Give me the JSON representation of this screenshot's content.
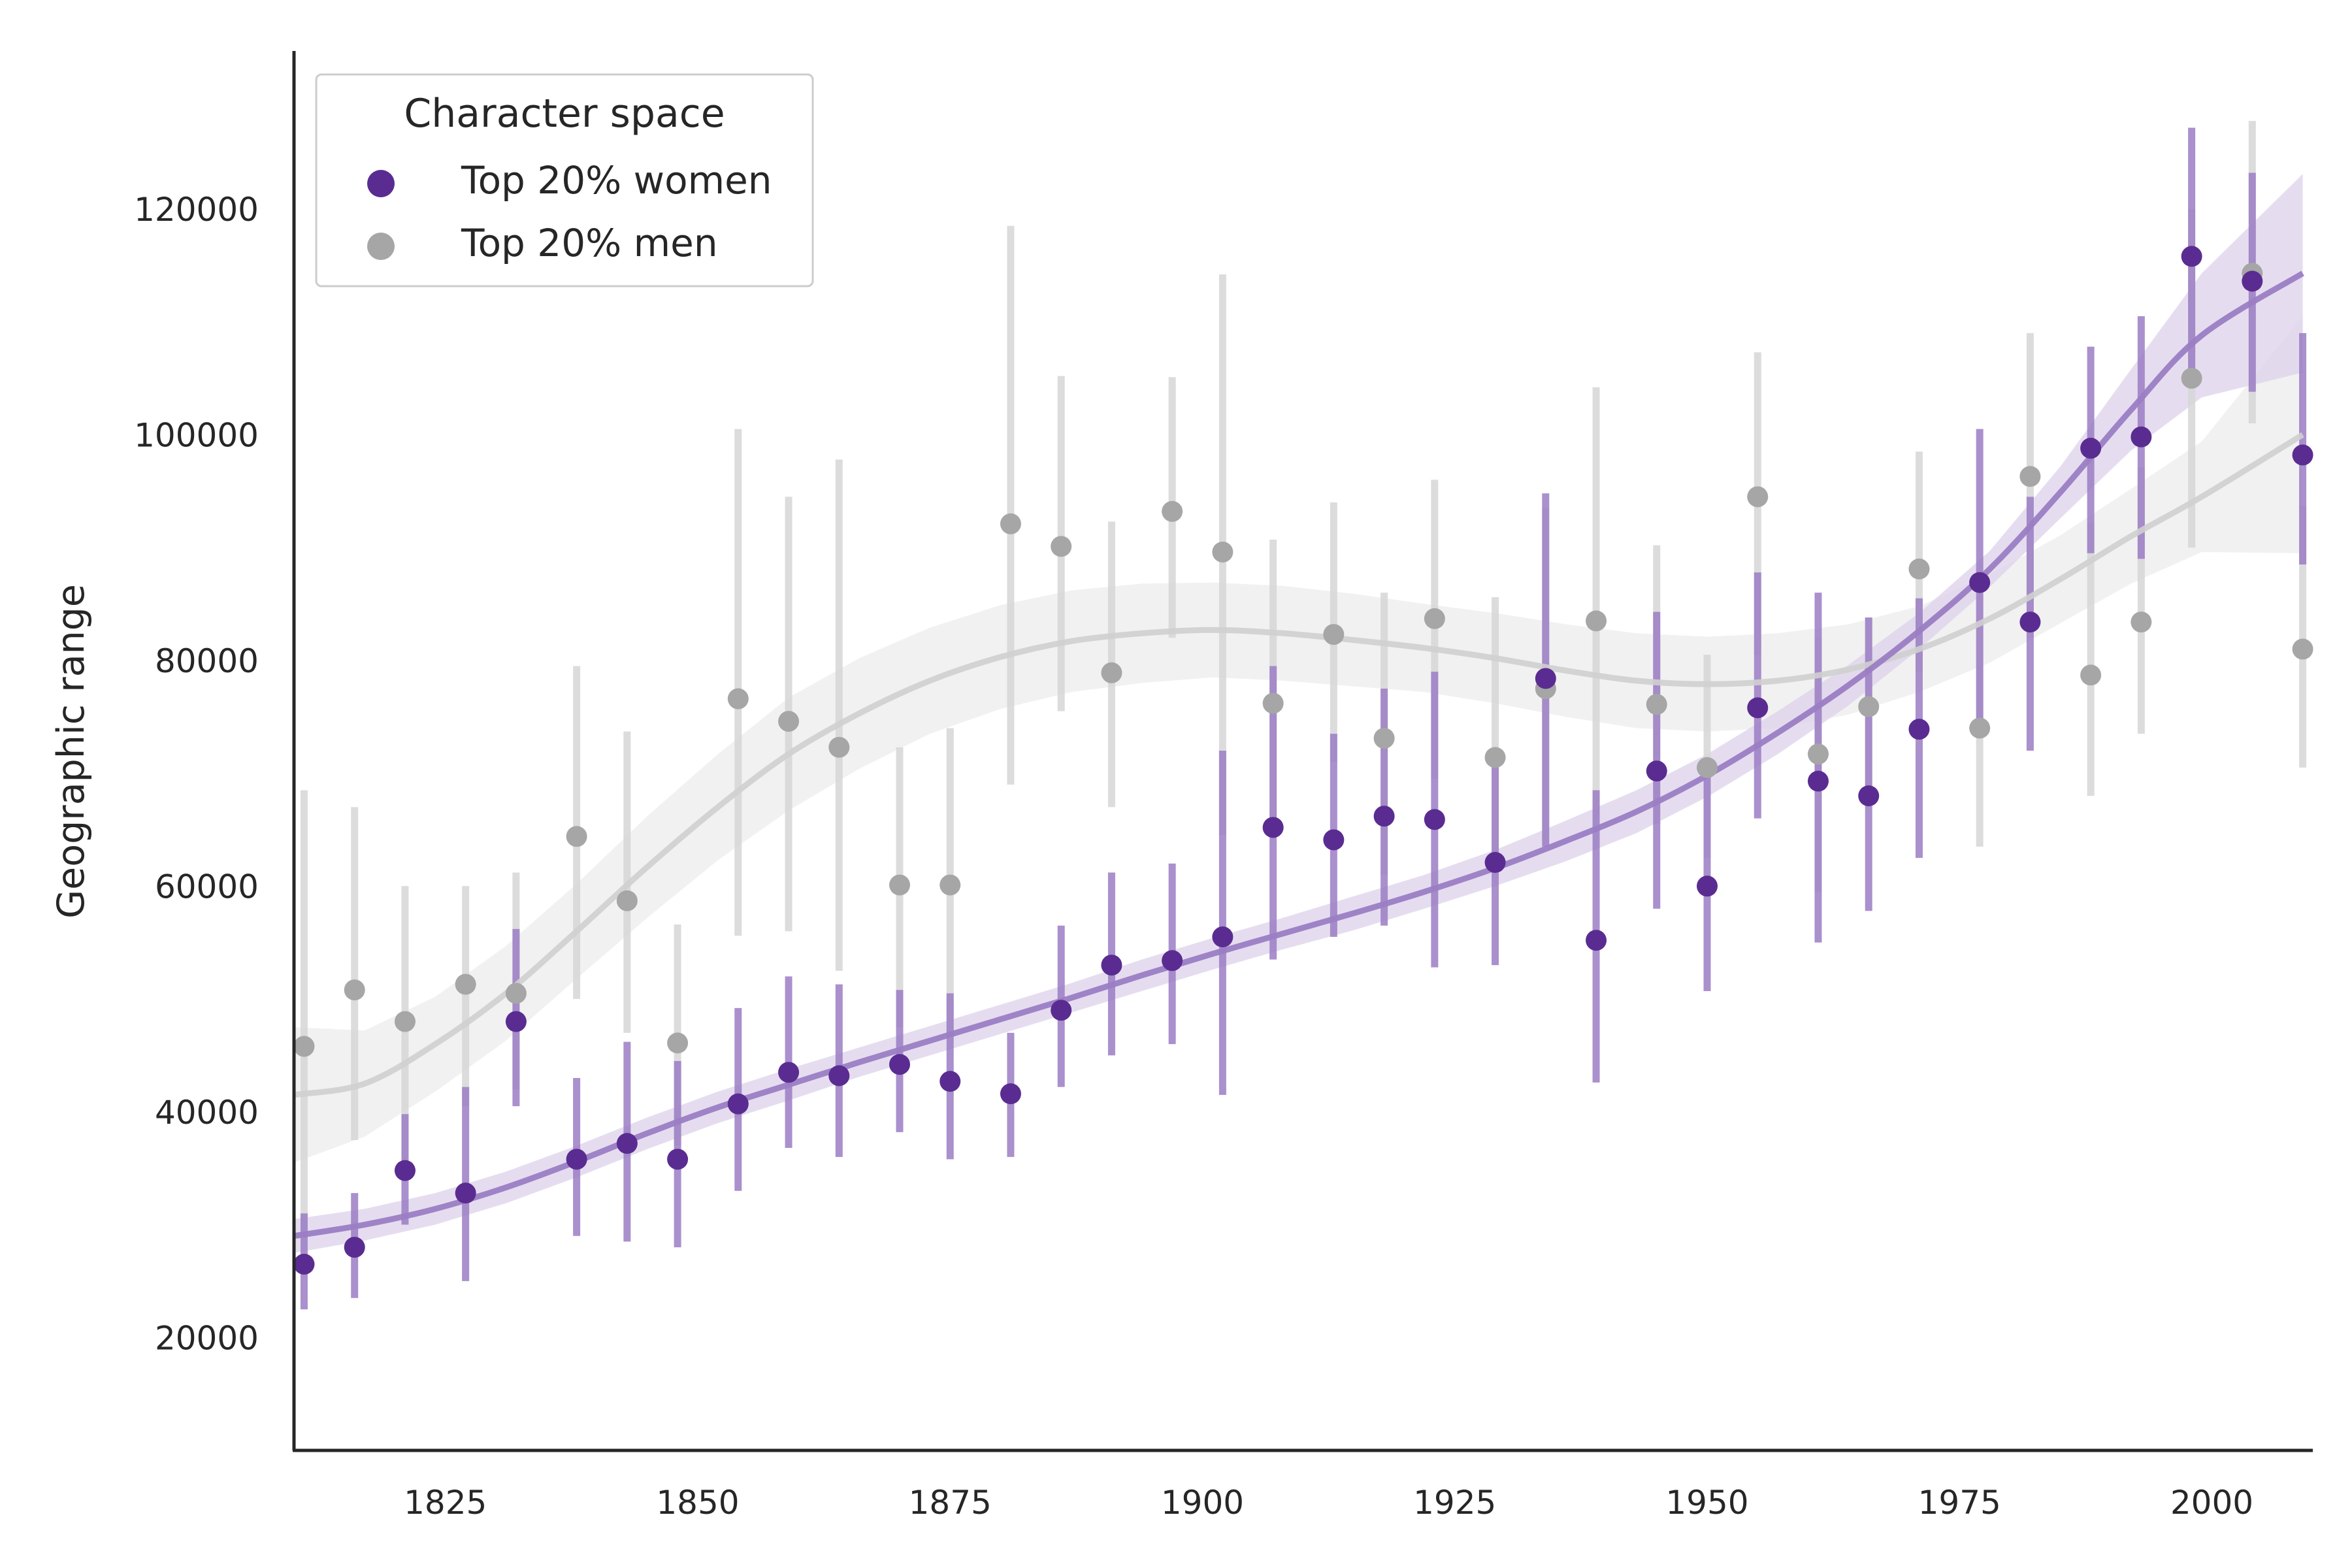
{
  "chart_data": {
    "type": "scatter",
    "title": "",
    "xlabel": "",
    "ylabel": "Geographic range",
    "xlim": [
      1810,
      2010
    ],
    "ylim": [
      10000,
      134000
    ],
    "x_ticks": [
      1825,
      1850,
      1875,
      1900,
      1925,
      1950,
      1975,
      2000
    ],
    "y_ticks": [
      20000,
      40000,
      60000,
      80000,
      100000,
      120000
    ],
    "grid": false,
    "legend": {
      "title": "Character space",
      "placement": "top-left",
      "entries": [
        "Top 20% women",
        "Top 20% men"
      ]
    },
    "colors": {
      "women": "#5a2c91",
      "women_bar": "#9b7dc4",
      "women_band": "#dcd2ea",
      "men": "#a6a6a6",
      "men_bar": "#d6d6d6",
      "men_band": "#f0f0f0",
      "men_line": "#cfcfcf"
    },
    "series": [
      {
        "name": "Top 20% women",
        "x": [
          1811,
          1816,
          1821,
          1827,
          1832,
          1838,
          1843,
          1848,
          1854,
          1859,
          1864,
          1870,
          1875,
          1881,
          1886,
          1891,
          1897,
          1902,
          1907,
          1913,
          1918,
          1923,
          1929,
          1934,
          1939,
          1945,
          1950,
          1955,
          1961,
          1966,
          1971,
          1977,
          1982,
          1988,
          1993,
          1998,
          2004,
          2009
        ],
        "y": [
          26500,
          28000,
          34800,
          32800,
          48000,
          35800,
          37200,
          35800,
          40700,
          43500,
          43200,
          44200,
          42700,
          41600,
          49000,
          53000,
          53400,
          55500,
          65200,
          64100,
          66200,
          65900,
          62100,
          78400,
          55200,
          70200,
          60000,
          75800,
          69300,
          68000,
          73900,
          86900,
          83400,
          98800,
          99800,
          115800,
          113600,
          98200
        ],
        "err_low": [
          22500,
          23500,
          30000,
          25000,
          40500,
          29000,
          28500,
          28000,
          33000,
          36800,
          36000,
          38200,
          35800,
          36000,
          42200,
          45000,
          46000,
          41500,
          53500,
          55500,
          56500,
          52800,
          53000,
          63500,
          42600,
          58000,
          50700,
          66000,
          55000,
          57800,
          62500,
          74000,
          72000,
          89500,
          89000,
          104500,
          103800,
          88500
        ],
        "err_high": [
          31000,
          32800,
          39800,
          42200,
          56200,
          43000,
          46200,
          44500,
          49200,
          52000,
          51300,
          50800,
          50500,
          47000,
          56500,
          61200,
          62000,
          72000,
          79500,
          73500,
          77500,
          79000,
          71500,
          94800,
          68500,
          84300,
          70500,
          87800,
          86000,
          83800,
          85500,
          100500,
          94500,
          107800,
          110500,
          127200,
          123200,
          109000
        ],
        "trend": [
          29000,
          30000,
          31400,
          33300,
          35600,
          38100,
          40400,
          42400,
          44400,
          46300,
          48200,
          50100,
          52100,
          54000,
          55800,
          57600,
          59500,
          61600,
          64000,
          66600,
          69800,
          73600,
          77800,
          82600,
          88100,
          94900,
          102200,
          108800,
          114300
        ],
        "trend_lo": [
          27500,
          28600,
          30000,
          31900,
          34200,
          36700,
          39000,
          41000,
          43100,
          45000,
          46900,
          48800,
          50700,
          52600,
          54400,
          56100,
          58000,
          60000,
          62200,
          64700,
          67900,
          71700,
          76000,
          81000,
          86500,
          92600,
          98600,
          103300,
          105500
        ],
        "trend_hi": [
          30500,
          31400,
          32800,
          34700,
          37000,
          39500,
          41800,
          43800,
          45700,
          47600,
          49500,
          51400,
          53500,
          55400,
          57200,
          59100,
          61000,
          63200,
          65800,
          68500,
          71700,
          75500,
          79600,
          84200,
          89700,
          97200,
          105800,
          114300,
          123100
        ]
      },
      {
        "name": "Top 20% men",
        "x": [
          1811,
          1816,
          1821,
          1827,
          1832,
          1838,
          1843,
          1848,
          1854,
          1859,
          1864,
          1870,
          1875,
          1881,
          1886,
          1891,
          1897,
          1902,
          1907,
          1913,
          1918,
          1923,
          1929,
          1934,
          1939,
          1945,
          1950,
          1955,
          1961,
          1966,
          1971,
          1977,
          1982,
          1988,
          1993,
          1998,
          2004,
          2009
        ],
        "y": [
          45800,
          50800,
          48000,
          51300,
          50500,
          64400,
          58700,
          46100,
          76600,
          74600,
          72300,
          60100,
          60100,
          92100,
          90100,
          78900,
          93200,
          89600,
          76200,
          82300,
          73100,
          83700,
          71400,
          77500,
          83500,
          76100,
          70500,
          94500,
          71700,
          75900,
          88100,
          74000,
          96300,
          78700,
          83400,
          105000,
          114300,
          81000
        ],
        "err_low": [
          29000,
          37500,
          35000,
          40500,
          42000,
          50000,
          47000,
          37000,
          55600,
          56000,
          52500,
          47500,
          47000,
          69000,
          75500,
          67000,
          82000,
          64500,
          65500,
          71000,
          61000,
          69500,
          61000,
          64000,
          66000,
          65500,
          62500,
          80500,
          59500,
          67500,
          79000,
          63500,
          82000,
          68000,
          73500,
          90000,
          101000,
          70500
        ],
        "err_high": [
          68500,
          67000,
          60000,
          60000,
          61200,
          79500,
          73700,
          56600,
          100500,
          94500,
          97800,
          72300,
          74000,
          118500,
          105200,
          92300,
          105100,
          114200,
          90700,
          94000,
          86000,
          96000,
          85600,
          93500,
          104200,
          90200,
          80500,
          107300,
          82000,
          83800,
          98500,
          85800,
          109000,
          92200,
          97100,
          120000,
          127800,
          93700
        ]
      }
    ],
    "men_trend": {
      "x": [
        1810,
        1817,
        1824,
        1831,
        1838,
        1845,
        1852,
        1859,
        1866,
        1873,
        1880,
        1887,
        1894,
        1901,
        1908,
        1915,
        1922,
        1929,
        1936,
        1943,
        1950,
        1957,
        1964,
        1971,
        1978,
        1985,
        1992,
        1999,
        2009
      ],
      "y": [
        41500,
        42500,
        46000,
        50500,
        56000,
        61700,
        67000,
        71700,
        75300,
        78200,
        80300,
        81700,
        82400,
        82700,
        82400,
        81800,
        81100,
        80200,
        79100,
        78200,
        77900,
        78200,
        79200,
        81000,
        83700,
        87200,
        91000,
        94500,
        100000
      ],
      "lo": [
        35500,
        37800,
        41800,
        46300,
        51800,
        57200,
        62300,
        66700,
        70400,
        73500,
        75700,
        77200,
        78000,
        78500,
        78200,
        77700,
        77200,
        76200,
        75000,
        74000,
        73700,
        74000,
        75200,
        77200,
        79800,
        83300,
        86800,
        89600,
        89500
      ],
      "hi": [
        47500,
        47200,
        50200,
        54700,
        60200,
        66200,
        71700,
        76700,
        80200,
        82900,
        84900,
        86200,
        86800,
        86900,
        86600,
        85900,
        85000,
        84200,
        83200,
        82400,
        82100,
        82400,
        83200,
        84800,
        87600,
        91100,
        95200,
        99400,
        110500
      ]
    },
    "women_trend_x": [
      1810,
      1817,
      1824,
      1831,
      1838,
      1845,
      1852,
      1859,
      1866,
      1873,
      1880,
      1887,
      1894,
      1901,
      1908,
      1915,
      1922,
      1929,
      1936,
      1943,
      1950,
      1957,
      1964,
      1971,
      1978,
      1985,
      1992,
      1999,
      2009
    ]
  }
}
